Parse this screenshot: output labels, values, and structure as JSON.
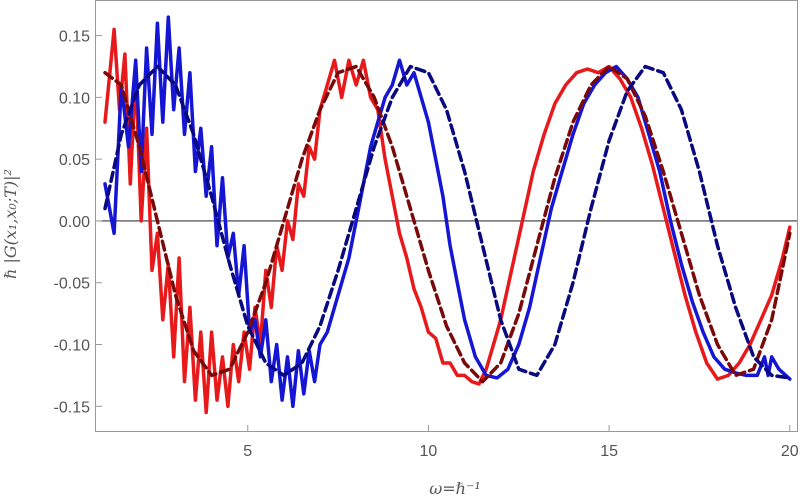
{
  "chart_data": {
    "type": "line",
    "title": "",
    "xlabel": "ω=ℏ⁻¹",
    "ylabel": "ℏ |G(x₁,x₀;T)|²",
    "xlim": [
      0.8,
      20.2
    ],
    "ylim": [
      -0.17,
      0.178
    ],
    "xticks": [
      5,
      10,
      15,
      20
    ],
    "xtick_labels": [
      "5",
      "10",
      "15",
      "20"
    ],
    "yticks": [
      -0.15,
      -0.1,
      -0.05,
      0.0,
      0.05,
      0.1,
      0.15
    ],
    "ytick_labels": [
      "-0.15",
      "-0.10",
      "-0.05",
      "0.00",
      "0.05",
      "0.10",
      "0.15"
    ],
    "grid": false,
    "legend": "none",
    "zero_line": true,
    "series": [
      {
        "color": "#e8191b",
        "style": "solid",
        "x": [
          1.05,
          1.3,
          1.45,
          1.6,
          1.75,
          1.9,
          2.05,
          2.2,
          2.35,
          2.5,
          2.65,
          2.8,
          2.95,
          3.1,
          3.25,
          3.4,
          3.55,
          3.7,
          3.85,
          4.0,
          4.15,
          4.3,
          4.45,
          4.6,
          4.75,
          4.9,
          5.05,
          5.2,
          5.35,
          5.5,
          5.65,
          5.8,
          5.95,
          6.1,
          6.25,
          6.4,
          6.55,
          6.7,
          6.85,
          7.0,
          7.2,
          7.4,
          7.6,
          7.8,
          8.0,
          8.2,
          8.4,
          8.6,
          8.8,
          9.0,
          9.2,
          9.4,
          9.6,
          9.8,
          10.0,
          10.2,
          10.4,
          10.6,
          10.8,
          11.0,
          11.2,
          11.4,
          11.6,
          11.8,
          12.0,
          12.3,
          12.6,
          12.9,
          13.2,
          13.5,
          13.8,
          14.1,
          14.4,
          14.7,
          15.0,
          15.3,
          15.6,
          15.9,
          16.2,
          16.5,
          16.8,
          17.1,
          17.4,
          17.7,
          18.0,
          18.3,
          18.6,
          18.9,
          19.2,
          19.5,
          19.8,
          20.0
        ],
        "y": [
          0.08,
          0.155,
          0.09,
          0.135,
          0.03,
          0.12,
          0.0,
          0.075,
          -0.04,
          -0.01,
          -0.08,
          -0.035,
          -0.11,
          -0.03,
          -0.13,
          -0.07,
          -0.145,
          -0.09,
          -0.155,
          -0.09,
          -0.145,
          -0.11,
          -0.15,
          -0.1,
          -0.13,
          -0.09,
          -0.12,
          -0.07,
          -0.1,
          -0.04,
          -0.07,
          -0.02,
          -0.04,
          0.0,
          -0.015,
          0.03,
          0.02,
          0.06,
          0.05,
          0.09,
          0.11,
          0.13,
          0.1,
          0.13,
          0.11,
          0.13,
          0.1,
          0.09,
          0.05,
          0.02,
          -0.01,
          -0.03,
          -0.055,
          -0.07,
          -0.09,
          -0.095,
          -0.115,
          -0.115,
          -0.125,
          -0.125,
          -0.13,
          -0.132,
          -0.12,
          -0.1,
          -0.08,
          -0.04,
          0.0,
          0.04,
          0.07,
          0.095,
          0.11,
          0.12,
          0.123,
          0.12,
          0.125,
          0.115,
          0.1,
          0.075,
          0.045,
          0.01,
          -0.025,
          -0.06,
          -0.09,
          -0.115,
          -0.128,
          -0.125,
          -0.115,
          -0.1,
          -0.08,
          -0.06,
          -0.03,
          -0.005
        ]
      },
      {
        "color": "#1515d4",
        "style": "solid",
        "x": [
          1.05,
          1.3,
          1.5,
          1.7,
          1.9,
          2.05,
          2.2,
          2.35,
          2.5,
          2.65,
          2.8,
          2.95,
          3.1,
          3.25,
          3.4,
          3.55,
          3.7,
          3.85,
          4.0,
          4.15,
          4.3,
          4.45,
          4.6,
          4.75,
          4.9,
          5.05,
          5.2,
          5.35,
          5.5,
          5.65,
          5.8,
          5.95,
          6.1,
          6.25,
          6.4,
          6.55,
          6.7,
          6.85,
          7.0,
          7.2,
          7.4,
          7.6,
          7.8,
          8.0,
          8.2,
          8.4,
          8.6,
          8.8,
          9.0,
          9.2,
          9.4,
          9.6,
          9.8,
          10.0,
          10.2,
          10.4,
          10.6,
          10.8,
          11.0,
          11.3,
          11.6,
          11.9,
          12.2,
          12.5,
          12.8,
          13.1,
          13.4,
          13.7,
          14.0,
          14.3,
          14.6,
          14.9,
          15.2,
          15.5,
          15.8,
          16.1,
          16.4,
          16.7,
          17.0,
          17.3,
          17.6,
          17.9,
          18.2,
          18.5,
          18.8,
          19.1,
          19.3,
          19.4,
          19.5,
          19.7,
          20.0
        ],
        "y": [
          0.03,
          -0.01,
          0.11,
          0.06,
          0.13,
          0.04,
          0.14,
          0.07,
          0.16,
          0.08,
          0.165,
          0.09,
          0.14,
          0.07,
          0.12,
          0.04,
          0.075,
          0.02,
          0.06,
          -0.02,
          0.035,
          -0.03,
          -0.01,
          -0.06,
          -0.02,
          -0.09,
          -0.08,
          -0.11,
          -0.08,
          -0.13,
          -0.1,
          -0.145,
          -0.11,
          -0.15,
          -0.105,
          -0.14,
          -0.105,
          -0.13,
          -0.1,
          -0.09,
          -0.07,
          -0.05,
          -0.03,
          0.0,
          0.03,
          0.06,
          0.08,
          0.1,
          0.11,
          0.13,
          0.11,
          0.12,
          0.1,
          0.08,
          0.05,
          0.02,
          -0.02,
          -0.05,
          -0.08,
          -0.11,
          -0.125,
          -0.127,
          -0.12,
          -0.1,
          -0.07,
          -0.03,
          0.01,
          0.04,
          0.07,
          0.095,
          0.11,
          0.12,
          0.125,
          0.115,
          0.1,
          0.07,
          0.04,
          0.0,
          -0.035,
          -0.065,
          -0.09,
          -0.11,
          -0.12,
          -0.123,
          -0.125,
          -0.125,
          -0.11,
          -0.125,
          -0.11,
          -0.12,
          -0.128
        ]
      },
      {
        "color": "#7a0a0a",
        "style": "dashed",
        "x": [
          1.05,
          1.5,
          2.0,
          2.5,
          3.0,
          3.5,
          4.0,
          4.5,
          5.0,
          5.5,
          6.0,
          6.5,
          7.0,
          7.5,
          8.0,
          8.5,
          9.0,
          9.5,
          10.0,
          10.5,
          11.0,
          11.5,
          12.0,
          12.5,
          13.0,
          13.5,
          14.0,
          14.5,
          15.0,
          15.5,
          16.0,
          16.5,
          17.0,
          17.5,
          18.0,
          18.5,
          19.0,
          19.5,
          20.0
        ],
        "y": [
          0.12,
          0.11,
          0.06,
          0.0,
          -0.06,
          -0.105,
          -0.125,
          -0.12,
          -0.09,
          -0.05,
          0.0,
          0.05,
          0.09,
          0.12,
          0.125,
          0.1,
          0.06,
          0.01,
          -0.04,
          -0.085,
          -0.115,
          -0.13,
          -0.115,
          -0.075,
          -0.02,
          0.035,
          0.08,
          0.11,
          0.125,
          0.115,
          0.085,
          0.04,
          -0.01,
          -0.06,
          -0.1,
          -0.125,
          -0.12,
          -0.08,
          -0.01
        ]
      },
      {
        "color": "#0a0a80",
        "style": "dashed",
        "x": [
          1.05,
          1.5,
          2.0,
          2.5,
          3.0,
          3.5,
          4.0,
          4.5,
          5.0,
          5.5,
          6.0,
          6.5,
          7.0,
          7.5,
          8.0,
          8.5,
          9.0,
          9.5,
          10.0,
          10.5,
          11.0,
          11.5,
          12.0,
          12.5,
          13.0,
          13.5,
          14.0,
          14.5,
          15.0,
          15.5,
          16.0,
          16.5,
          17.0,
          17.5,
          18.0,
          18.5,
          19.0,
          19.5,
          20.0
        ],
        "y": [
          0.01,
          0.07,
          0.11,
          0.125,
          0.11,
          0.07,
          0.02,
          -0.035,
          -0.085,
          -0.115,
          -0.125,
          -0.115,
          -0.085,
          -0.04,
          0.01,
          0.06,
          0.1,
          0.125,
          0.12,
          0.09,
          0.04,
          -0.02,
          -0.08,
          -0.12,
          -0.125,
          -0.1,
          -0.05,
          0.01,
          0.065,
          0.105,
          0.125,
          0.12,
          0.09,
          0.04,
          -0.02,
          -0.07,
          -0.11,
          -0.125,
          -0.127
        ]
      }
    ]
  }
}
